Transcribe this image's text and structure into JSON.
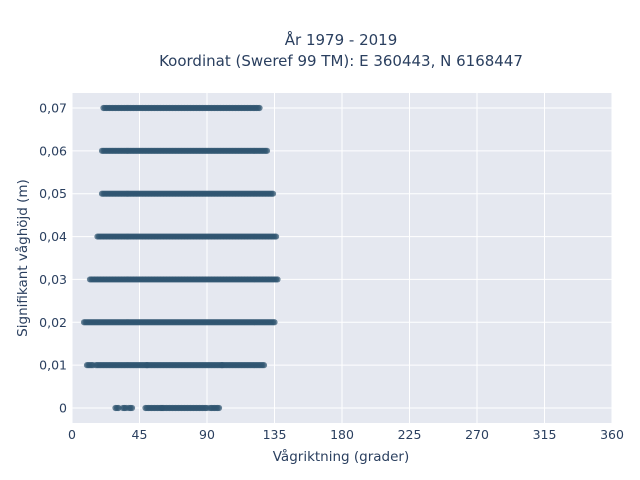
{
  "chart_data": {
    "type": "scatter",
    "title_line1": "År 1979 - 2019",
    "title_line2": "Koordinat (Sweref 99 TM): E 360443, N 6168447",
    "xlabel": "Vågriktning (grader)",
    "ylabel": "Signifikant våghöjd (m)",
    "xlim": [
      0,
      360
    ],
    "ylim": [
      -0.0035,
      0.0735
    ],
    "x_ticks": [
      0,
      45,
      90,
      135,
      180,
      225,
      270,
      315,
      360
    ],
    "x_tick_labels": [
      "0",
      "45",
      "90",
      "135",
      "180",
      "225",
      "270",
      "315",
      "360"
    ],
    "y_ticks": [
      0,
      0.01,
      0.02,
      0.03,
      0.04,
      0.05,
      0.06,
      0.07
    ],
    "y_tick_labels": [
      "0",
      "0,01",
      "0,02",
      "0,03",
      "0,04",
      "0,05",
      "0,06",
      "0,07"
    ],
    "grid": true,
    "plot_background": "#e5e8f0",
    "gridline_color": "#ffffff",
    "marker_color": "#2f5470",
    "series": [
      {
        "rows": [
          {
            "y": 0.0,
            "clusters": [
              [
                29,
                31
              ],
              [
                34,
                36
              ],
              [
                38,
                40
              ],
              [
                49,
                60
              ],
              [
                60,
                90
              ],
              [
                92,
                98
              ]
            ]
          },
          {
            "y": 0.01,
            "clusters": [
              [
                10,
                14
              ],
              [
                16,
                50
              ],
              [
                50,
                100
              ],
              [
                100,
                128
              ]
            ]
          },
          {
            "y": 0.02,
            "clusters": [
              [
                8,
                135
              ]
            ]
          },
          {
            "y": 0.03,
            "clusters": [
              [
                12,
                137
              ]
            ]
          },
          {
            "y": 0.04,
            "clusters": [
              [
                17,
                136
              ]
            ]
          },
          {
            "y": 0.05,
            "clusters": [
              [
                20,
                134
              ]
            ]
          },
          {
            "y": 0.06,
            "clusters": [
              [
                20,
                130
              ]
            ]
          },
          {
            "y": 0.07,
            "clusters": [
              [
                21,
                125
              ]
            ]
          }
        ]
      }
    ]
  }
}
